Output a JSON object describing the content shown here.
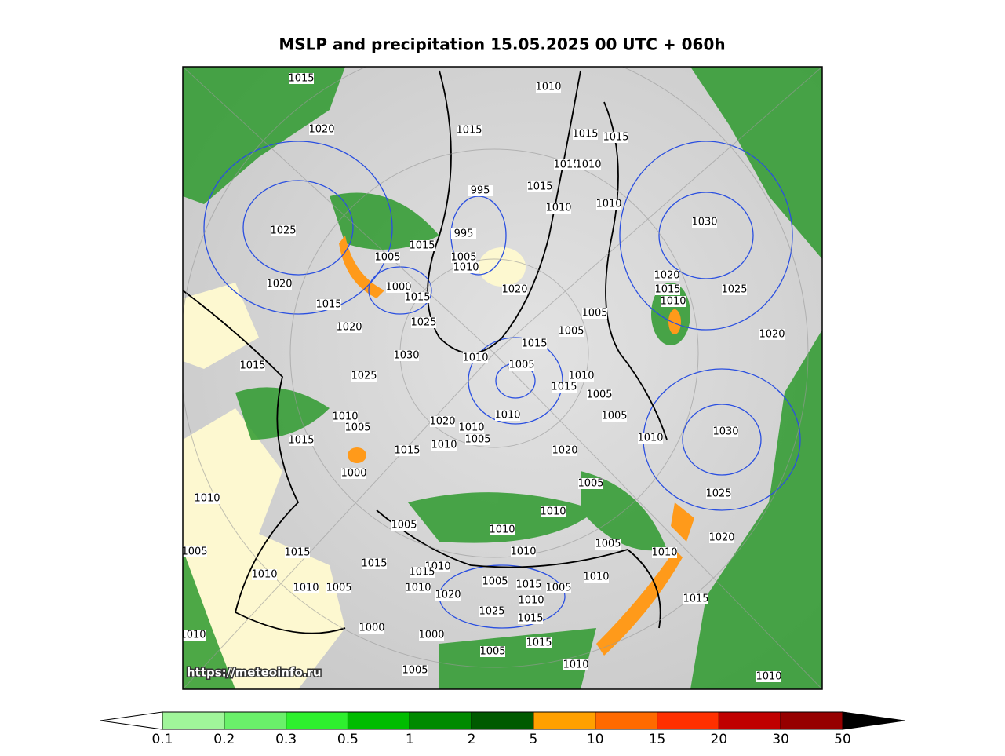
{
  "title": "MSLP and precipitation 15.05.2025 00 UTC + 060h",
  "watermark": "https://meteoinfo.ru",
  "isobar_labels": [
    "1015",
    "1010",
    "1020",
    "1015",
    "1015",
    "1015",
    "1015",
    "1010",
    "995",
    "1015",
    "1010",
    "1010",
    "1025",
    "995",
    "1030",
    "1005",
    "1015",
    "1005",
    "1010",
    "1020",
    "1020",
    "1000",
    "1015",
    "1020",
    "1015",
    "1010",
    "1025",
    "1015",
    "1020",
    "1025",
    "1005",
    "1005",
    "1020",
    "1015",
    "1030",
    "1010",
    "1005",
    "1015",
    "1025",
    "1010",
    "1015",
    "1005",
    "1010",
    "1005",
    "1020",
    "1010",
    "1010",
    "1005",
    "1015",
    "1010",
    "1015",
    "1020",
    "1010",
    "1030",
    "1005",
    "1000",
    "1005",
    "1010",
    "1025",
    "1010",
    "1005",
    "1010",
    "1020",
    "1005",
    "1015",
    "1010",
    "1005",
    "1010",
    "1015",
    "1010",
    "1015",
    "1010",
    "1010",
    "1010",
    "1005",
    "1010",
    "1020",
    "1005",
    "1015",
    "1005",
    "1015",
    "1010",
    "1025",
    "1015",
    "1000",
    "1000",
    "1010",
    "1005",
    "1015",
    "1010",
    "1005",
    "1010"
  ],
  "colorbar": {
    "levels": [
      0.1,
      0.2,
      0.3,
      0.5,
      1,
      2,
      5,
      10,
      15,
      20,
      30,
      50
    ],
    "colors": [
      "#a0f59a",
      "#6af06a",
      "#2ef02e",
      "#00bc00",
      "#008a00",
      "#005a00",
      "#ffa000",
      "#ff6a00",
      "#ff3000",
      "#c00000",
      "#960000"
    ],
    "under_color": "#ffffff",
    "over_color": "#000000"
  }
}
